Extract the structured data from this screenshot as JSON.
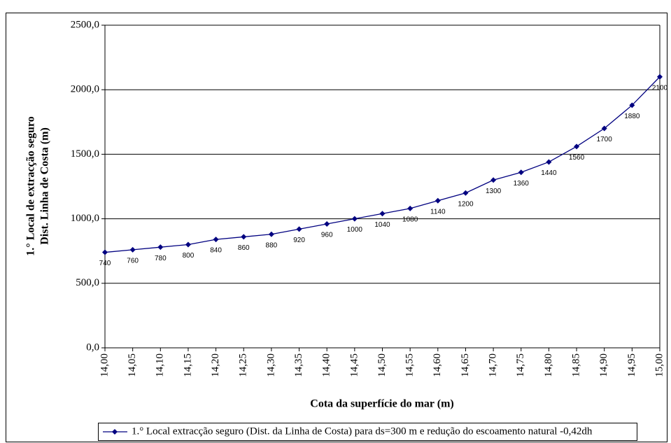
{
  "chart_data": {
    "type": "line",
    "y_label_lines": [
      "1.° Local de extracção seguro",
      "Dist. Linha de Costa (m)"
    ],
    "x_label": "Cota da superfície do mar (m)",
    "categories": [
      "14,00",
      "14,05",
      "14,10",
      "14,15",
      "14,20",
      "14,25",
      "14,30",
      "14,35",
      "14,40",
      "14,45",
      "14,50",
      "14,55",
      "14,60",
      "14,65",
      "14,70",
      "14,75",
      "14,80",
      "14,85",
      "14,90",
      "14,95",
      "15,00"
    ],
    "series": [
      {
        "name": "1.° Local extracção seguro (Dist. da Linha de Costa) para ds=300 m e redução do escoamento natural -0,42dh",
        "color": "#000080",
        "values": [
          740,
          760,
          780,
          800,
          840,
          860,
          880,
          920,
          960,
          1000,
          1040,
          1080,
          1140,
          1200,
          1300,
          1360,
          1440,
          1560,
          1700,
          1880,
          2100
        ]
      }
    ],
    "ylim": [
      0,
      2500
    ],
    "yticks": [
      {
        "value": 0,
        "label": "0,0"
      },
      {
        "value": 500,
        "label": "500,0"
      },
      {
        "value": 1000,
        "label": "1000,0"
      },
      {
        "value": 1500,
        "label": "1500,0"
      },
      {
        "value": 2000,
        "label": "2000,0"
      },
      {
        "value": 2500,
        "label": "2500,0"
      }
    ],
    "grid": true,
    "legend": "bottom"
  }
}
